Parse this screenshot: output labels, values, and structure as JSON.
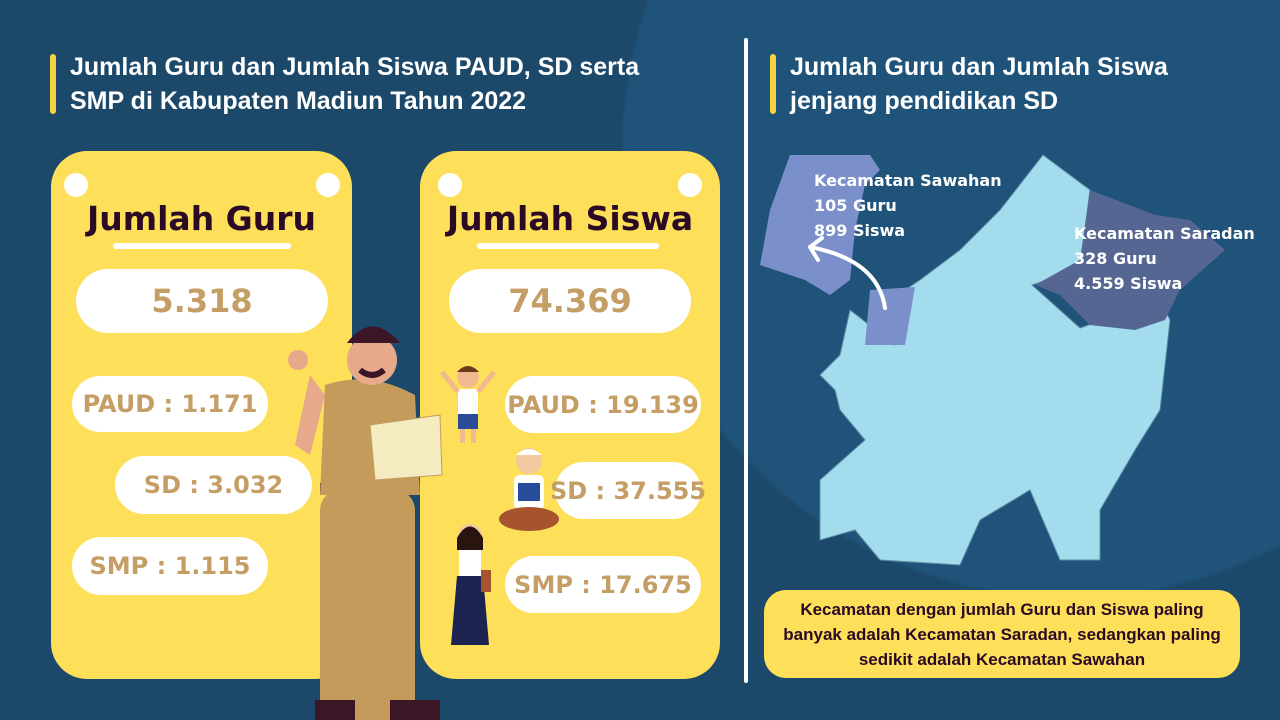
{
  "left": {
    "title_line1": "Jumlah Guru dan Jumlah Siswa PAUD, SD serta",
    "title_line2": "SMP di Kabupaten Madiun Tahun 2022",
    "guru": {
      "heading": "Jumlah Guru",
      "total": "5.318",
      "paud": "PAUD : 1.171",
      "sd": "SD : 3.032",
      "smp": "SMP : 1.115"
    },
    "siswa": {
      "heading": "Jumlah Siswa",
      "total": "74.369",
      "paud": "PAUD : 19.139",
      "sd": "SD : 37.555",
      "smp": "SMP : 17.675"
    }
  },
  "right": {
    "title_line1": "Jumlah Guru dan Jumlah Siswa",
    "title_line2": "jenjang pendidikan SD",
    "sawahan": {
      "name": "Kecamatan Sawahan",
      "guru": "105 Guru",
      "siswa": "899 Siswa"
    },
    "saradan": {
      "name": "Kecamatan Saradan",
      "guru": "328 Guru",
      "siswa": "4.559 Siswa"
    },
    "note": "Kecamatan dengan jumlah Guru dan Siswa paling banyak adalah Kecamatan Saradan, sedangkan paling sedikit adalah Kecamatan Sawahan"
  },
  "colors": {
    "background": "#1c4869",
    "card": "#fddf5a",
    "value": "#c49e64",
    "map": "#a3dcec",
    "sawahan": "#7b8fca",
    "saradan": "#566692"
  }
}
